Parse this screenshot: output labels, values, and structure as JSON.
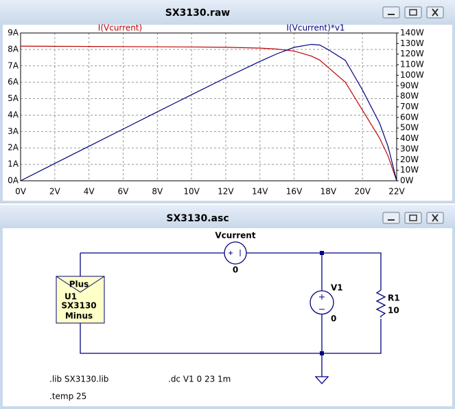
{
  "plot_window": {
    "title": "SX3130.raw"
  },
  "chart_data": {
    "type": "line",
    "x": [
      0,
      2,
      4,
      6,
      8,
      10,
      12,
      14,
      15,
      16,
      17,
      17.5,
      18,
      19,
      20,
      21,
      21.5,
      22
    ],
    "series": [
      {
        "name": "I(Vcurrent)",
        "color": "#c00000",
        "values": [
          8.2,
          8.19,
          8.18,
          8.17,
          8.16,
          8.15,
          8.13,
          8.08,
          8.02,
          7.9,
          7.6,
          7.35,
          6.9,
          6.0,
          4.3,
          2.6,
          1.5,
          0
        ]
      },
      {
        "name": "I(Vcurrent)*v1",
        "color": "#000080",
        "axis": "y2",
        "values": [
          0,
          16.4,
          32.7,
          49,
          65.3,
          81.5,
          97.6,
          113.1,
          120.3,
          126.4,
          129.2,
          128.6,
          124.2,
          114,
          86,
          54.6,
          32.3,
          0
        ]
      }
    ],
    "xlim": [
      0,
      22
    ],
    "xticks": [
      {
        "value": 0,
        "label": "0V"
      },
      {
        "value": 2,
        "label": "2V"
      },
      {
        "value": 4,
        "label": "4V"
      },
      {
        "value": 6,
        "label": "6V"
      },
      {
        "value": 8,
        "label": "8V"
      },
      {
        "value": 10,
        "label": "10V"
      },
      {
        "value": 12,
        "label": "12V"
      },
      {
        "value": 14,
        "label": "14V"
      },
      {
        "value": 16,
        "label": "16V"
      },
      {
        "value": 18,
        "label": "18V"
      },
      {
        "value": 20,
        "label": "20V"
      },
      {
        "value": 22,
        "label": "22V"
      }
    ],
    "ylim": [
      0,
      9
    ],
    "yticks": [
      {
        "value": 0,
        "label": "0A"
      },
      {
        "value": 1,
        "label": "1A"
      },
      {
        "value": 2,
        "label": "2A"
      },
      {
        "value": 3,
        "label": "3A"
      },
      {
        "value": 4,
        "label": "4A"
      },
      {
        "value": 5,
        "label": "5A"
      },
      {
        "value": 6,
        "label": "6A"
      },
      {
        "value": 7,
        "label": "7A"
      },
      {
        "value": 8,
        "label": "8A"
      },
      {
        "value": 9,
        "label": "9A"
      }
    ],
    "y2lim": [
      0,
      140
    ],
    "y2ticks": [
      {
        "value": 0,
        "label": "0W"
      },
      {
        "value": 10,
        "label": "10W"
      },
      {
        "value": 20,
        "label": "20W"
      },
      {
        "value": 30,
        "label": "30W"
      },
      {
        "value": 40,
        "label": "40W"
      },
      {
        "value": 50,
        "label": "50W"
      },
      {
        "value": 60,
        "label": "60W"
      },
      {
        "value": 70,
        "label": "70W"
      },
      {
        "value": 80,
        "label": "80W"
      },
      {
        "value": 90,
        "label": "90W"
      },
      {
        "value": 100,
        "label": "100W"
      },
      {
        "value": 110,
        "label": "110W"
      },
      {
        "value": 120,
        "label": "120W"
      },
      {
        "value": 130,
        "label": "130W"
      },
      {
        "value": 140,
        "label": "140W"
      }
    ],
    "grid": true
  },
  "schematic_window": {
    "title": "SX3130.asc",
    "vcurrent": {
      "name": "Vcurrent",
      "value": "0"
    },
    "v1": {
      "name": "V1",
      "value": "0"
    },
    "r1": {
      "name": "R1",
      "value": "10"
    },
    "u1": {
      "top": "Plus",
      "name": "U1",
      "model": "SX3130",
      "bottom": "Minus"
    },
    "directives": [
      ".lib SX3130.lib",
      ".dc V1 0 23 1m",
      ".temp 25"
    ]
  }
}
